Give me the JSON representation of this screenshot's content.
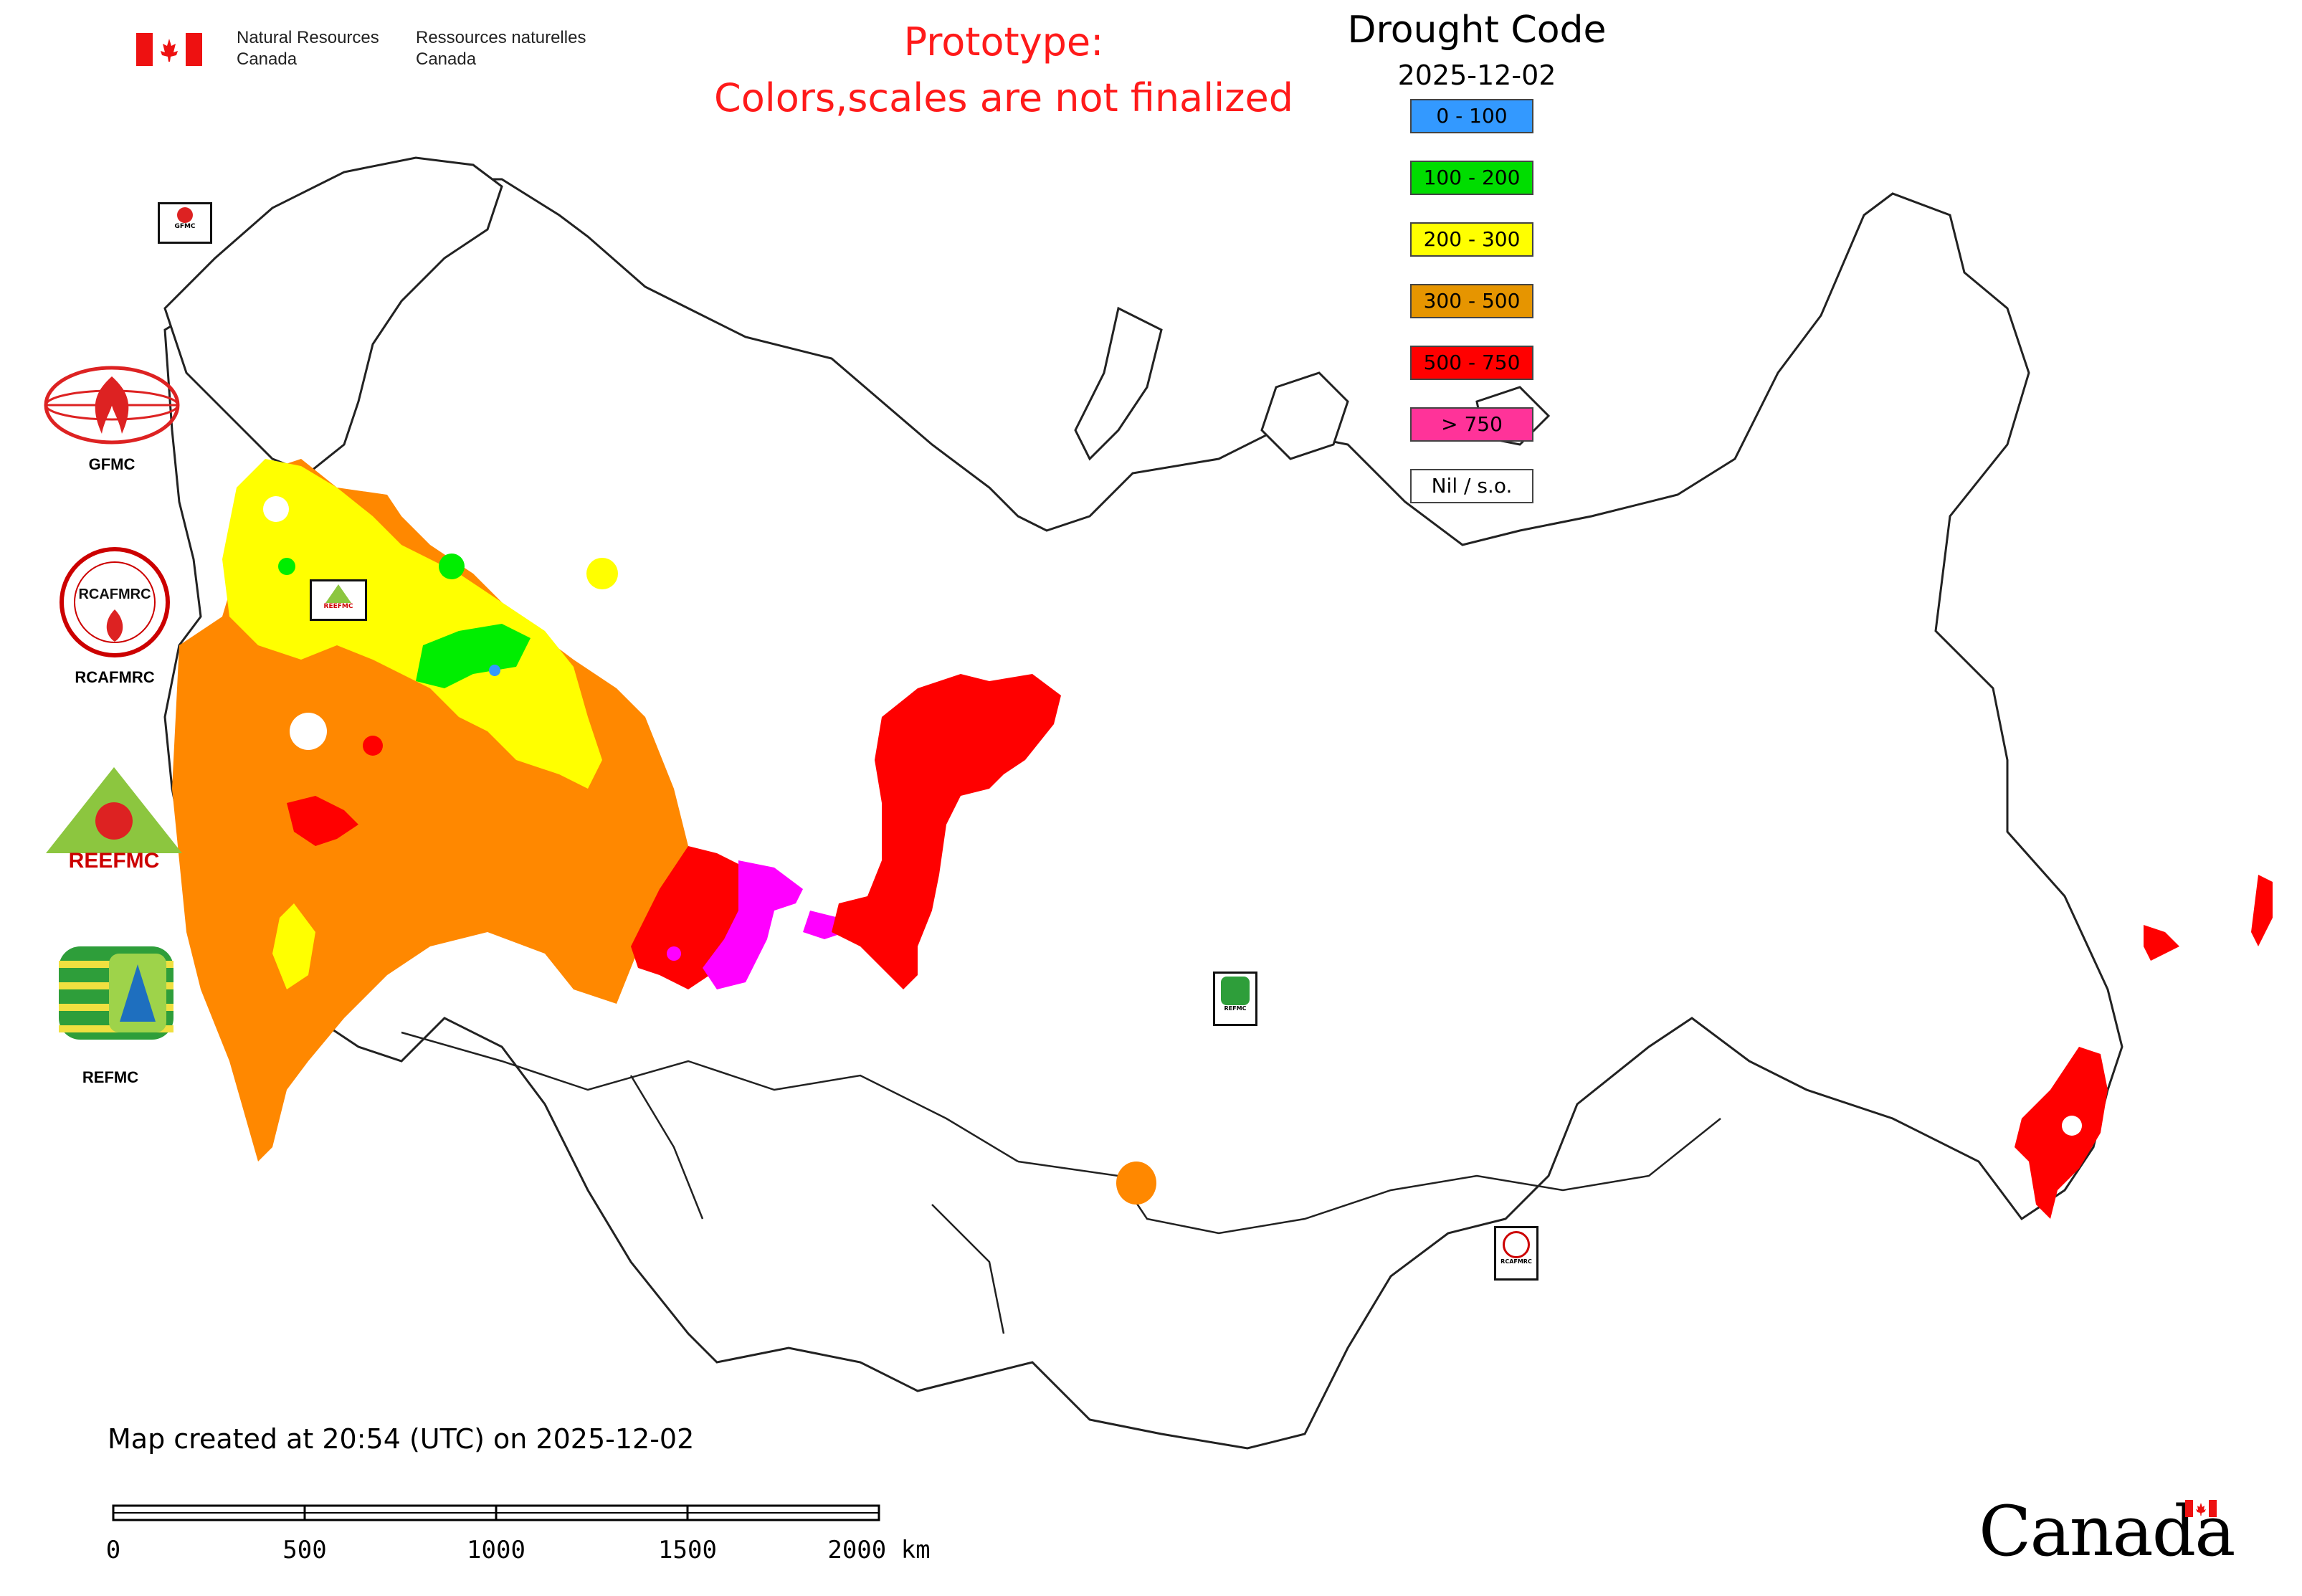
{
  "header": {
    "department_en_line1": "Natural Resources",
    "department_en_line2": "Canada",
    "department_fr_line1": "Ressources naturelles",
    "department_fr_line2": "Canada"
  },
  "notice": {
    "line1": "Prototype:",
    "line2": "Colors,scales are not finalized"
  },
  "legend": {
    "title": "Drought Code",
    "date": "2025-12-02",
    "items": [
      {
        "label": "0 - 100",
        "color": "#3399ff"
      },
      {
        "label": "100 - 200",
        "color": "#00dd00"
      },
      {
        "label": "200 - 300",
        "color": "#ffff00"
      },
      {
        "label": "300 - 500",
        "color": "#e69500"
      },
      {
        "label": "500 - 750",
        "color": "#ff0000"
      },
      {
        "label": "> 750",
        "color": "#ff3399"
      },
      {
        "label": "Nil / s.o.",
        "color": "#ffffff"
      }
    ]
  },
  "agencies": [
    {
      "label": "GFMC"
    },
    {
      "label": "RCAFMRC"
    },
    {
      "label": "REEFMC"
    },
    {
      "label": "REFMC"
    }
  ],
  "map_markers": {
    "gfmc": "GFMC",
    "reefmc": "REEFMC",
    "refmc": "REFMC",
    "rcafmrc": "RCAFMRC"
  },
  "colors": {
    "orange": "#ff8800",
    "yellow": "#ffff00",
    "green": "#00ee00",
    "red": "#ff0000",
    "magenta": "#ff00ff"
  },
  "footer": {
    "map_created": "Map created at 20:54 (UTC) on 2025-12-02",
    "scale_labels": [
      "0",
      "500",
      "1000",
      "1500",
      "2000 km"
    ],
    "wordmark": "Canada"
  }
}
